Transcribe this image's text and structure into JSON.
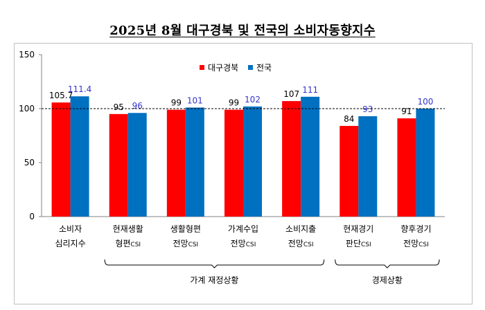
{
  "title": "2025년 8월 대구경북 및 전국의 소비자동향지수",
  "colors": {
    "daegu": "#ff0000",
    "national": "#0070c0",
    "national_label": "#3333cc"
  },
  "chart_data": {
    "type": "bar",
    "title": "2025년 8월 대구경북 및 전국의 소비자동향지수",
    "categories": [
      {
        "line1": "소비자",
        "line2": "심리지수",
        "suffix": ""
      },
      {
        "line1": "현재생활",
        "line2": "형편",
        "suffix": "CSI"
      },
      {
        "line1": "생활형편",
        "line2": "전망",
        "suffix": "CSI"
      },
      {
        "line1": "가계수입",
        "line2": "전망",
        "suffix": "CSI"
      },
      {
        "line1": "소비지출",
        "line2": "전망",
        "suffix": "CSI"
      },
      {
        "line1": "현재경기",
        "line2": "판단",
        "suffix": "CSI"
      },
      {
        "line1": "향후경기",
        "line2": "전망",
        "suffix": "CSI"
      }
    ],
    "series": [
      {
        "name": "대구경북",
        "values": [
          105.7,
          95,
          99,
          99,
          107,
          84,
          91
        ],
        "labels": [
          "105.7",
          "95",
          "99",
          "99",
          "107",
          "84",
          "91"
        ]
      },
      {
        "name": "전국",
        "values": [
          111.4,
          96,
          101,
          102,
          111,
          93,
          100
        ],
        "labels": [
          "111.4",
          "96",
          "101",
          "102",
          "111",
          "93",
          "100"
        ]
      }
    ],
    "ylim": [
      0,
      150
    ],
    "yticks": [
      0,
      50,
      100,
      150
    ],
    "reference_line": 100,
    "legend_position": "top-center",
    "groups": [
      {
        "label": "가계 재정상황",
        "from": 1,
        "to": 4
      },
      {
        "label": "경제상황",
        "from": 5,
        "to": 6
      }
    ]
  }
}
